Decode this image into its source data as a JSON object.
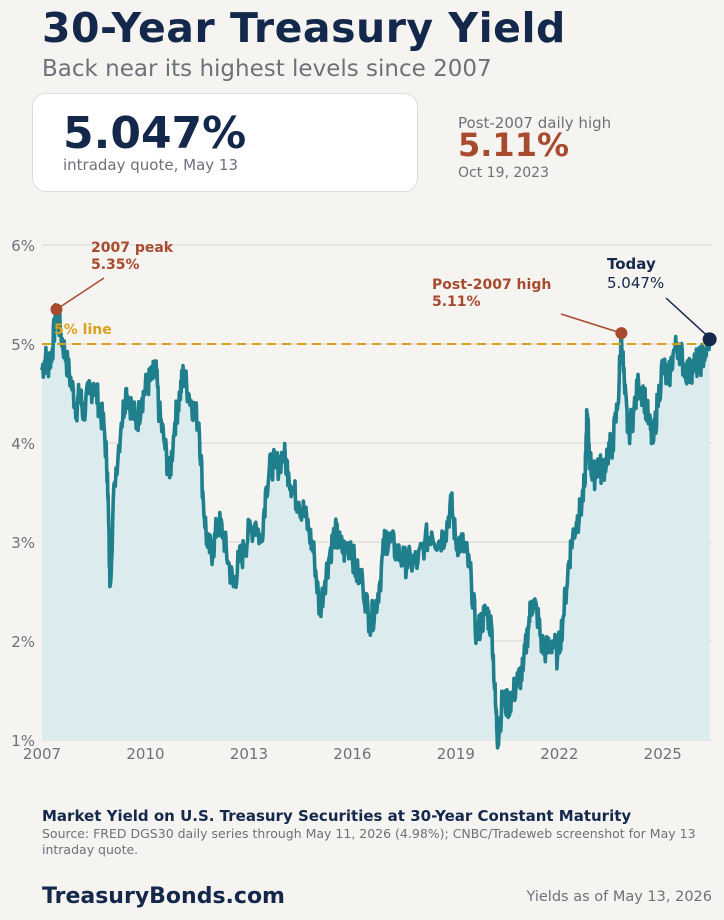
{
  "header": {
    "title": "30-Year Treasury Yield",
    "subtitle": "Back near its highest levels since 2007"
  },
  "quote": {
    "value": "5.047%",
    "caption": "intraday quote, May 13"
  },
  "post_2007_high": {
    "label": "Post-2007 daily high",
    "value": "5.11%",
    "date": "Oct 19, 2023"
  },
  "chart_data": {
    "type": "area",
    "title": "Market Yield on U.S. Treasury Securities at 30-Year Constant Maturity",
    "xlabel": "",
    "ylabel": "",
    "xlim": [
      2007.0,
      2026.37
    ],
    "ylim": [
      1,
      6
    ],
    "x_ticks": [
      2007,
      2010,
      2013,
      2016,
      2019,
      2022,
      2025
    ],
    "x_tick_labels": [
      "2007",
      "2010",
      "2013",
      "2016",
      "2019",
      "2022",
      "2025"
    ],
    "y_ticks": [
      1,
      2,
      3,
      4,
      5,
      6
    ],
    "y_tick_labels": [
      "1%",
      "2%",
      "3%",
      "4%",
      "5%",
      "6%"
    ],
    "grid": "horizontal",
    "colors": {
      "line": "#1f7f8c",
      "fill": "#dcecee",
      "reference": "#d9a21b",
      "high": "#a84a2e",
      "today": "#14284b"
    },
    "series": [
      {
        "values": [
          [
            2007.0,
            4.75
          ],
          [
            2007.1,
            4.85
          ],
          [
            2007.2,
            4.8
          ],
          [
            2007.3,
            4.95
          ],
          [
            2007.42,
            5.35
          ],
          [
            2007.55,
            5.1
          ],
          [
            2007.7,
            4.85
          ],
          [
            2007.85,
            4.6
          ],
          [
            2008.0,
            4.35
          ],
          [
            2008.1,
            4.5
          ],
          [
            2008.2,
            4.3
          ],
          [
            2008.35,
            4.5
          ],
          [
            2008.5,
            4.6
          ],
          [
            2008.65,
            4.4
          ],
          [
            2008.8,
            4.15
          ],
          [
            2008.9,
            3.7
          ],
          [
            2008.97,
            2.55
          ],
          [
            2009.1,
            3.6
          ],
          [
            2009.3,
            4.2
          ],
          [
            2009.45,
            4.55
          ],
          [
            2009.6,
            4.35
          ],
          [
            2009.75,
            4.2
          ],
          [
            2009.9,
            4.45
          ],
          [
            2010.05,
            4.6
          ],
          [
            2010.2,
            4.65
          ],
          [
            2010.3,
            4.75
          ],
          [
            2010.4,
            4.3
          ],
          [
            2010.55,
            4.0
          ],
          [
            2010.7,
            3.65
          ],
          [
            2010.85,
            4.2
          ],
          [
            2011.0,
            4.5
          ],
          [
            2011.1,
            4.7
          ],
          [
            2011.25,
            4.5
          ],
          [
            2011.4,
            4.35
          ],
          [
            2011.55,
            4.2
          ],
          [
            2011.68,
            3.4
          ],
          [
            2011.8,
            2.95
          ],
          [
            2011.95,
            2.9
          ],
          [
            2012.1,
            3.2
          ],
          [
            2012.25,
            3.1
          ],
          [
            2012.4,
            2.8
          ],
          [
            2012.55,
            2.55
          ],
          [
            2012.7,
            2.8
          ],
          [
            2012.85,
            2.9
          ],
          [
            2013.0,
            3.1
          ],
          [
            2013.2,
            3.2
          ],
          [
            2013.35,
            3.0
          ],
          [
            2013.5,
            3.55
          ],
          [
            2013.65,
            3.8
          ],
          [
            2013.8,
            3.75
          ],
          [
            2014.0,
            3.9
          ],
          [
            2014.15,
            3.7
          ],
          [
            2014.3,
            3.5
          ],
          [
            2014.45,
            3.4
          ],
          [
            2014.6,
            3.3
          ],
          [
            2014.75,
            3.1
          ],
          [
            2014.9,
            2.85
          ],
          [
            2015.05,
            2.3
          ],
          [
            2015.2,
            2.6
          ],
          [
            2015.35,
            2.9
          ],
          [
            2015.5,
            3.1
          ],
          [
            2015.65,
            2.95
          ],
          [
            2015.8,
            2.9
          ],
          [
            2015.95,
            3.0
          ],
          [
            2016.1,
            2.7
          ],
          [
            2016.3,
            2.6
          ],
          [
            2016.5,
            2.2
          ],
          [
            2016.65,
            2.3
          ],
          [
            2016.8,
            2.6
          ],
          [
            2016.95,
            3.05
          ],
          [
            2017.1,
            3.0
          ],
          [
            2017.3,
            2.9
          ],
          [
            2017.5,
            2.8
          ],
          [
            2017.7,
            2.8
          ],
          [
            2017.9,
            2.8
          ],
          [
            2018.1,
            3.0
          ],
          [
            2018.3,
            3.1
          ],
          [
            2018.5,
            3.0
          ],
          [
            2018.7,
            3.1
          ],
          [
            2018.87,
            3.4
          ],
          [
            2019.0,
            3.0
          ],
          [
            2019.15,
            3.0
          ],
          [
            2019.3,
            2.9
          ],
          [
            2019.45,
            2.6
          ],
          [
            2019.6,
            2.05
          ],
          [
            2019.75,
            2.2
          ],
          [
            2019.9,
            2.3
          ],
          [
            2020.05,
            2.1
          ],
          [
            2020.15,
            1.35
          ],
          [
            2020.22,
            1.0
          ],
          [
            2020.35,
            1.4
          ],
          [
            2020.5,
            1.35
          ],
          [
            2020.65,
            1.45
          ],
          [
            2020.8,
            1.6
          ],
          [
            2020.95,
            1.7
          ],
          [
            2021.1,
            2.15
          ],
          [
            2021.2,
            2.4
          ],
          [
            2021.35,
            2.3
          ],
          [
            2021.5,
            1.95
          ],
          [
            2021.65,
            1.9
          ],
          [
            2021.8,
            2.0
          ],
          [
            2021.95,
            1.85
          ],
          [
            2022.1,
            2.2
          ],
          [
            2022.25,
            2.7
          ],
          [
            2022.35,
            3.0
          ],
          [
            2022.5,
            3.2
          ],
          [
            2022.6,
            3.3
          ],
          [
            2022.75,
            3.6
          ],
          [
            2022.8,
            4.3
          ],
          [
            2022.9,
            3.8
          ],
          [
            2023.0,
            3.65
          ],
          [
            2023.1,
            3.8
          ],
          [
            2023.25,
            3.7
          ],
          [
            2023.4,
            3.9
          ],
          [
            2023.55,
            4.0
          ],
          [
            2023.7,
            4.4
          ],
          [
            2023.8,
            5.11
          ],
          [
            2023.9,
            4.5
          ],
          [
            2024.0,
            4.1
          ],
          [
            2024.15,
            4.3
          ],
          [
            2024.3,
            4.6
          ],
          [
            2024.45,
            4.5
          ],
          [
            2024.6,
            4.2
          ],
          [
            2024.72,
            4.0
          ],
          [
            2024.85,
            4.4
          ],
          [
            2025.0,
            4.8
          ],
          [
            2025.15,
            4.6
          ],
          [
            2025.3,
            4.9
          ],
          [
            2025.45,
            5.0
          ],
          [
            2025.6,
            4.8
          ],
          [
            2025.75,
            4.7
          ],
          [
            2025.9,
            4.8
          ],
          [
            2026.05,
            4.8
          ],
          [
            2026.2,
            4.9
          ],
          [
            2026.36,
            5.047
          ]
        ]
      }
    ],
    "reference_lines": [
      {
        "y": 5,
        "label": "5% line"
      }
    ],
    "annotations": [
      {
        "x": 2007.42,
        "y": 5.35,
        "label": "2007 peak",
        "value_label": "5.35%",
        "style": "high"
      },
      {
        "x": 2023.8,
        "y": 5.11,
        "label": "Post-2007 high",
        "value_label": "5.11%",
        "style": "high"
      },
      {
        "x": 2026.36,
        "y": 5.047,
        "label": "Today",
        "value_label": "5.047%",
        "style": "today"
      }
    ]
  },
  "footer": {
    "chart_title": "Market Yield on U.S. Treasury Securities at 30-Year Constant Maturity",
    "source": "Source: FRED DGS30 daily series through May 11, 2026 (4.98%); CNBC/Tradeweb screenshot for May 13 intraday quote.",
    "brand": "TreasuryBonds.com",
    "as_of": "Yields as of May 13, 2026"
  }
}
